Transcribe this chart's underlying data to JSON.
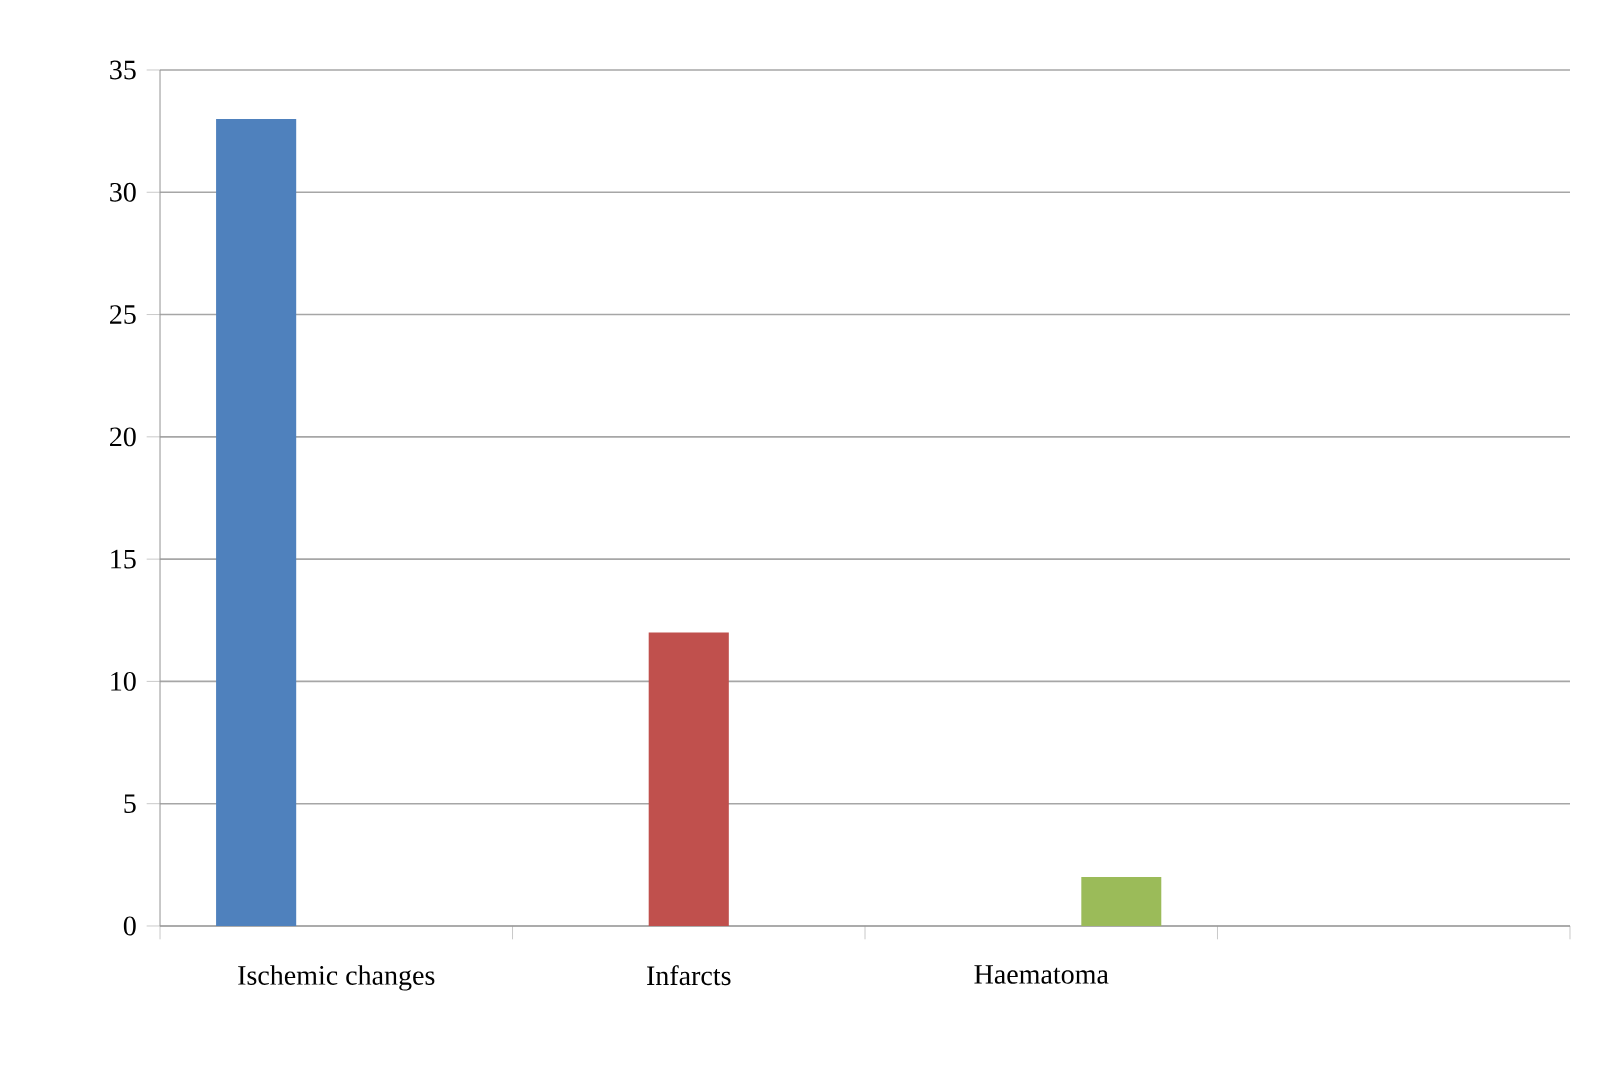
{
  "chart_data": {
    "type": "bar",
    "categories": [
      "Ischemic changes",
      "Infarcts",
      "Haematoma",
      null
    ],
    "series": [
      {
        "color": "#4f81bd",
        "values": [
          33,
          null,
          null,
          null
        ]
      },
      {
        "color": "#c0504d",
        "values": [
          null,
          12,
          null,
          null
        ]
      },
      {
        "color": "#9bbb59",
        "values": [
          null,
          null,
          2,
          null
        ]
      }
    ],
    "ylim": [
      0,
      35
    ],
    "yticks": [
      0,
      5,
      10,
      15,
      20,
      25,
      30,
      35
    ],
    "grid": "y"
  }
}
